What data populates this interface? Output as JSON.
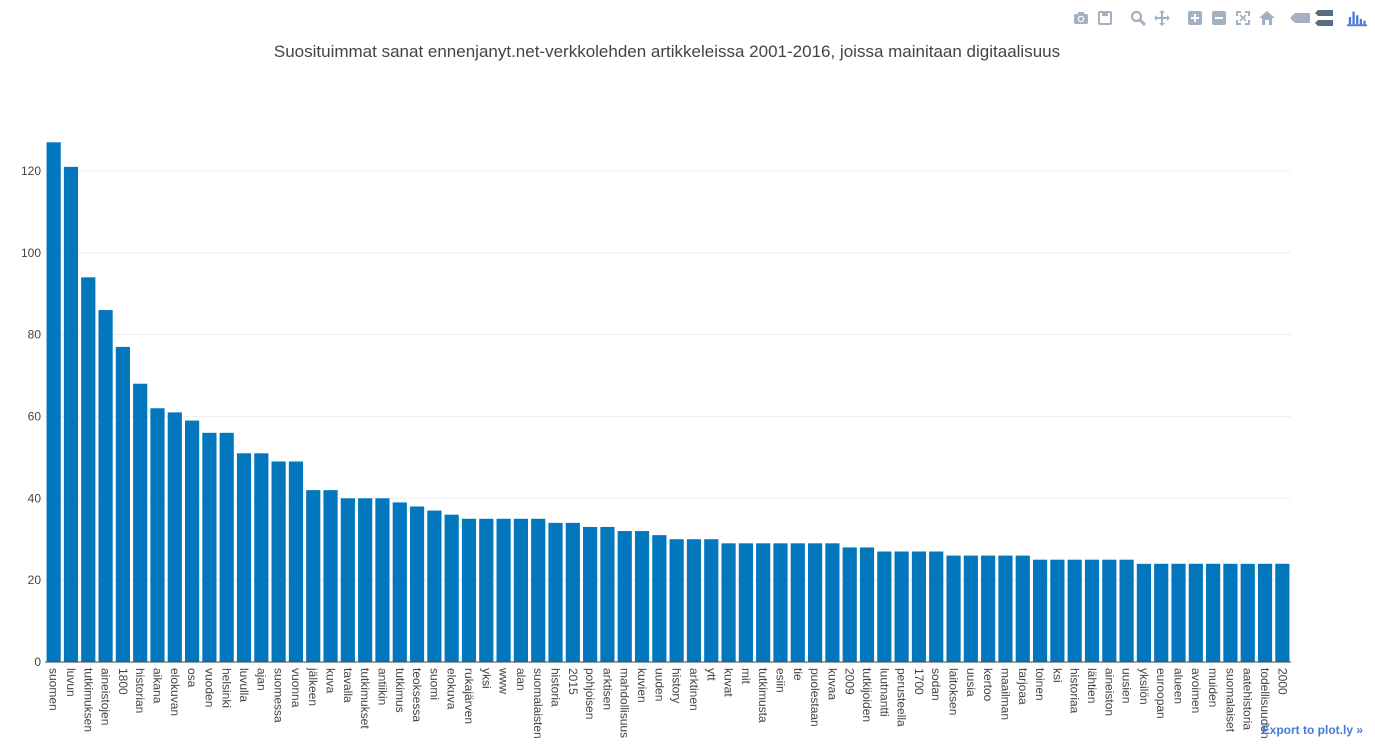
{
  "modebar": {
    "buttons": [
      {
        "name": "download-plot-icon",
        "group": 1
      },
      {
        "name": "save-icon",
        "group": 1
      },
      {
        "name": "zoom-icon",
        "group": 2
      },
      {
        "name": "pan-icon",
        "group": 2
      },
      {
        "name": "zoom-in-icon",
        "group": 3
      },
      {
        "name": "zoom-out-icon",
        "group": 3
      },
      {
        "name": "autoscale-icon",
        "group": 3
      },
      {
        "name": "reset-axes-icon",
        "group": 3
      },
      {
        "name": "hover-closest-icon",
        "group": 4
      },
      {
        "name": "hover-compare-icon",
        "group": 4
      },
      {
        "name": "plotly-logo-icon",
        "group": 5
      }
    ],
    "icon_color": "#a3b1c2",
    "logo_color": "#447adb"
  },
  "export_link": "Export to plot.ly »",
  "chart_data": {
    "type": "bar",
    "title": "Suosituimmat sanat ennenjanyt.net-verkkolehden artikkeleissa 2001-2016, joissa mainitaan digitaalisuus",
    "xlabel": "",
    "ylabel": "",
    "ylim": [
      0,
      130
    ],
    "yticks": [
      0,
      20,
      40,
      60,
      80,
      100,
      120
    ],
    "grid": true,
    "bar_color": "#0277bd",
    "categories": [
      "suomen",
      "luvun",
      "tutkimuksen",
      "aineistojen",
      "1800",
      "historian",
      "aikana",
      "elokuvan",
      "osa",
      "vuoden",
      "helsinki",
      "luvulla",
      "ajan",
      "suomessa",
      "vuonna",
      "jälkeen",
      "kuva",
      "tavalla",
      "tutkimukset",
      "antiikin",
      "tutkimus",
      "teoksessa",
      "suomi",
      "elokuva",
      "rukajärven",
      "yksi",
      "www",
      "alan",
      "suomalaisten",
      "historia",
      "2015",
      "pohjoisen",
      "arktisen",
      "mahdollisuus",
      "kuvien",
      "uuden",
      "history",
      "arktinen",
      "ytt",
      "kuvat",
      "mit",
      "tutkimusta",
      "esiin",
      "tie",
      "puolestaan",
      "kuvaa",
      "2009",
      "tutkijoiden",
      "luutnantti",
      "perusteella",
      "1700",
      "sodan",
      "laitoksen",
      "uusia",
      "kertoo",
      "maailman",
      "tarjoaa",
      "toinen",
      "ksi",
      "historiaa",
      "lähtien",
      "aineiston",
      "uusien",
      "yksilön",
      "euroopan",
      "alueen",
      "avoimen",
      "muiden",
      "suomalaiset",
      "aatehistoria",
      "todellisuuden",
      "2000"
    ],
    "values": [
      127,
      121,
      94,
      86,
      77,
      68,
      62,
      61,
      59,
      56,
      56,
      51,
      51,
      49,
      49,
      42,
      42,
      40,
      40,
      40,
      39,
      38,
      37,
      36,
      35,
      35,
      35,
      35,
      35,
      34,
      34,
      33,
      33,
      32,
      32,
      31,
      30,
      30,
      30,
      29,
      29,
      29,
      29,
      29,
      29,
      29,
      28,
      28,
      27,
      27,
      27,
      27,
      26,
      26,
      26,
      26,
      26,
      25,
      25,
      25,
      25,
      25,
      25,
      24,
      24,
      24,
      24,
      24,
      24,
      24,
      24,
      24
    ]
  }
}
